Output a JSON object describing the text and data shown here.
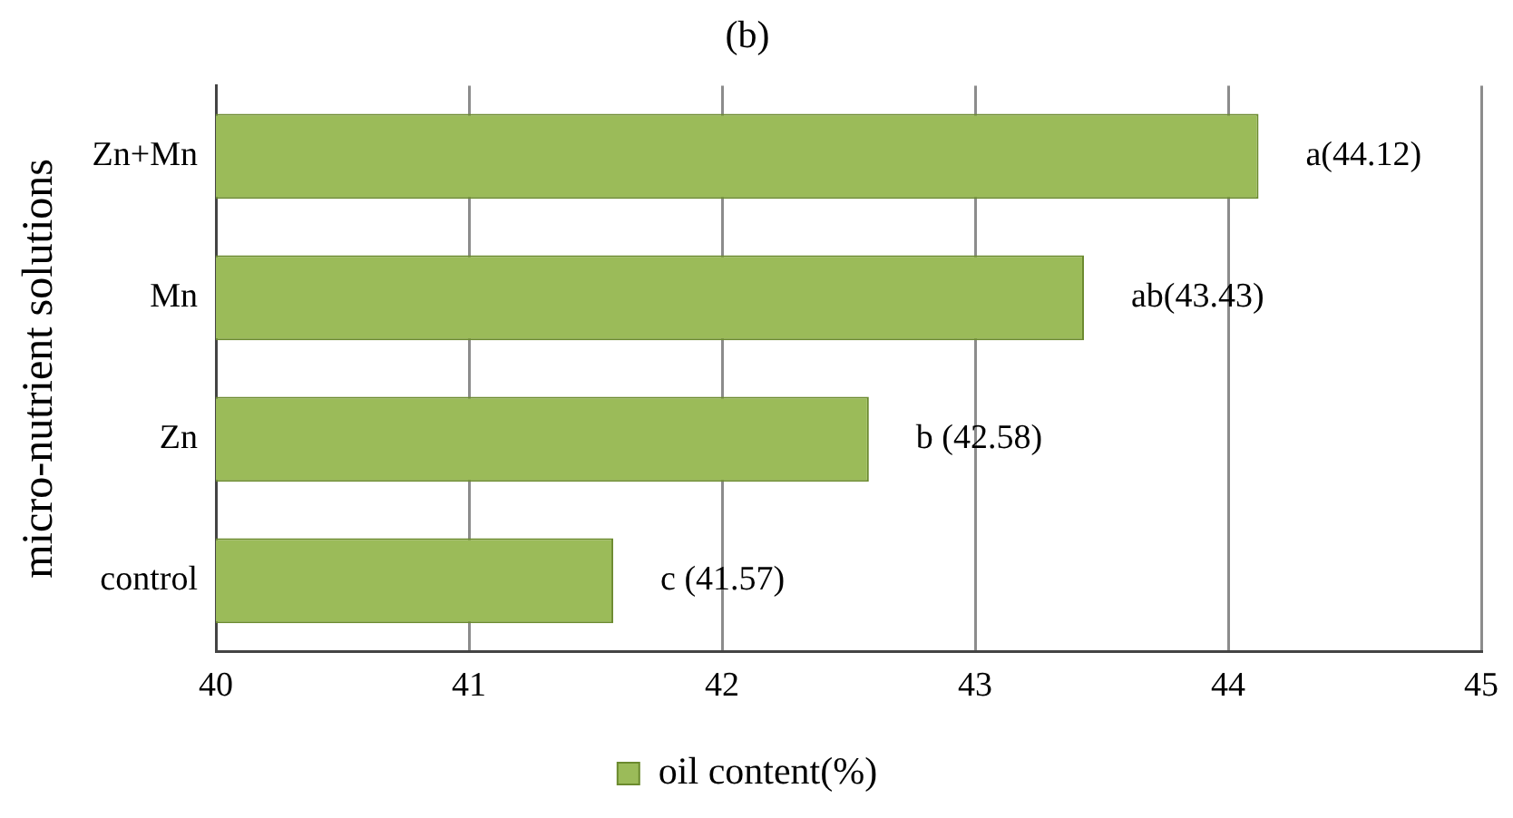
{
  "chart_data": {
    "type": "bar",
    "orientation": "horizontal",
    "title": "(b)",
    "ylabel": "micro-nutrient solutions",
    "categories": [
      "Zn+Mn",
      "Mn",
      "Zn",
      "control"
    ],
    "series": [
      {
        "name": "oil content(%)",
        "color": "#9bbb59",
        "values": [
          44.12,
          43.43,
          42.58,
          41.57
        ],
        "value_labels": [
          "a(44.12)",
          "ab(43.43)",
          "b (42.58)",
          "c (41.57)"
        ]
      }
    ],
    "xlim": [
      40,
      45
    ],
    "xticks": [
      40,
      41,
      42,
      43,
      44,
      45
    ],
    "grid": "x",
    "legend": "bottom"
  }
}
